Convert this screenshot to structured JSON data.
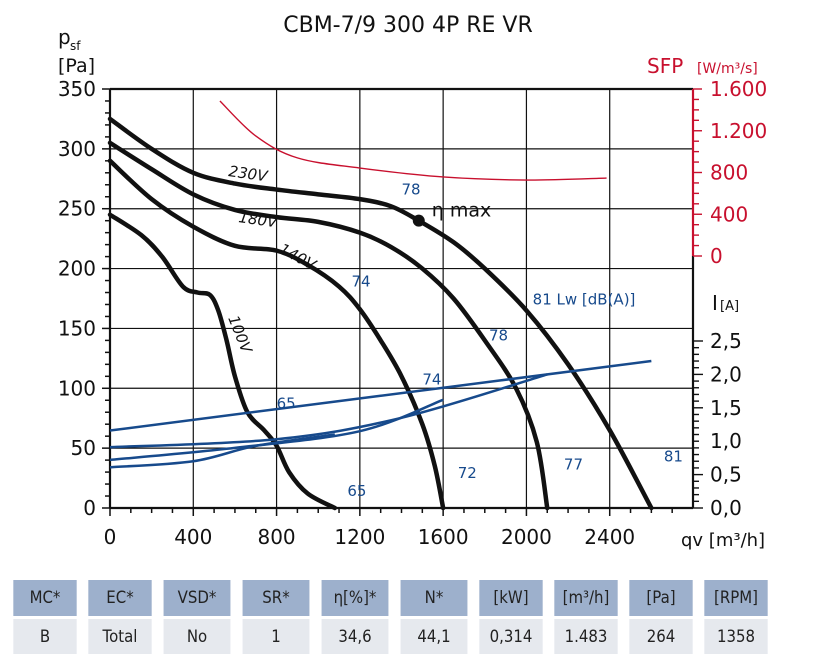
{
  "chart_data": {
    "type": "line",
    "title": "CBM-7/9 300 4P RE VR",
    "xlabel": "qv [m³/h]",
    "ylabel": "psf [Pa]",
    "xlim": [
      0,
      2800
    ],
    "ylim": [
      0,
      350
    ],
    "x_ticks": [
      0,
      400,
      800,
      1200,
      1600,
      2000,
      2400
    ],
    "y_ticks": [
      0,
      50,
      100,
      150,
      200,
      250,
      300,
      350
    ],
    "grid": true,
    "sfp_axis": {
      "label": "SFP",
      "unit": "[W/m³/s]",
      "ticks": [
        "0",
        "400",
        "800",
        "1.200",
        "1.600"
      ],
      "range": [
        0,
        1600
      ],
      "color": "#c8102e"
    },
    "current_axis": {
      "label": "I",
      "unit": "[A]",
      "ticks": [
        "0,0",
        "0,5",
        "1,0",
        "1,5",
        "2,0",
        "2,5"
      ],
      "range": [
        0,
        2.5
      ]
    },
    "fan_curves": [
      {
        "name": "230V",
        "points": [
          [
            0,
            325
          ],
          [
            200,
            300
          ],
          [
            400,
            280
          ],
          [
            600,
            271
          ],
          [
            800,
            266
          ],
          [
            1000,
            262
          ],
          [
            1200,
            258
          ],
          [
            1350,
            252
          ],
          [
            1483,
            240
          ],
          [
            1650,
            222
          ],
          [
            1800,
            200
          ],
          [
            2000,
            165
          ],
          [
            2200,
            120
          ],
          [
            2400,
            65
          ],
          [
            2600,
            0
          ]
        ]
      },
      {
        "name": "180V",
        "points": [
          [
            0,
            305
          ],
          [
            200,
            283
          ],
          [
            400,
            262
          ],
          [
            600,
            249
          ],
          [
            800,
            243
          ],
          [
            1000,
            239
          ],
          [
            1200,
            230
          ],
          [
            1350,
            218
          ],
          [
            1500,
            200
          ],
          [
            1650,
            175
          ],
          [
            1800,
            140
          ],
          [
            1950,
            100
          ],
          [
            2050,
            55
          ],
          [
            2100,
            0
          ]
        ]
      },
      {
        "name": "140V",
        "points": [
          [
            0,
            290
          ],
          [
            200,
            258
          ],
          [
            400,
            235
          ],
          [
            600,
            219
          ],
          [
            800,
            215
          ],
          [
            950,
            203
          ],
          [
            1100,
            185
          ],
          [
            1200,
            166
          ],
          [
            1300,
            140
          ],
          [
            1400,
            110
          ],
          [
            1500,
            70
          ],
          [
            1560,
            35
          ],
          [
            1600,
            0
          ]
        ]
      },
      {
        "name": "100V",
        "points": [
          [
            0,
            245
          ],
          [
            150,
            228
          ],
          [
            250,
            210
          ],
          [
            350,
            185
          ],
          [
            420,
            180
          ],
          [
            480,
            178
          ],
          [
            520,
            165
          ],
          [
            560,
            140
          ],
          [
            600,
            110
          ],
          [
            660,
            80
          ],
          [
            740,
            65
          ],
          [
            800,
            52
          ],
          [
            860,
            30
          ],
          [
            950,
            12
          ],
          [
            1080,
            0
          ]
        ]
      }
    ],
    "sfp_curve": {
      "name": "SFP",
      "points": [
        [
          528,
          1485
        ],
        [
          700,
          1150
        ],
        [
          900,
          940
        ],
        [
          1200,
          843
        ],
        [
          1600,
          757
        ],
        [
          2000,
          728
        ],
        [
          2385,
          747
        ]
      ]
    },
    "current_curves": [
      {
        "name": "I-230V",
        "points": [
          [
            0,
            1.16
          ],
          [
            2600,
            2.2
          ]
        ]
      },
      {
        "name": "I-180V",
        "points": [
          [
            0,
            0.91
          ],
          [
            800,
            1.03
          ],
          [
            1400,
            1.35
          ],
          [
            2100,
            2.0
          ]
        ]
      },
      {
        "name": "I-140V",
        "points": [
          [
            0,
            0.72
          ],
          [
            600,
            0.9
          ],
          [
            1200,
            1.15
          ],
          [
            1600,
            1.62
          ]
        ]
      },
      {
        "name": "I-100V",
        "points": [
          [
            0,
            0.61
          ],
          [
            400,
            0.7
          ],
          [
            700,
            0.93
          ],
          [
            1080,
            1.1
          ]
        ]
      }
    ],
    "eta_max": {
      "label": "η max",
      "point": [
        1483,
        240
      ]
    },
    "voltage_labels": [
      "230V",
      "180V",
      "140V",
      "100V"
    ],
    "sound_labels": [
      {
        "text": "78",
        "at": [
          1400,
          262
        ]
      },
      {
        "text": "74",
        "at": [
          1160,
          185
        ]
      },
      {
        "text": "81 Lw [dB(A)]",
        "at": [
          2030,
          170
        ]
      },
      {
        "text": "78",
        "at": [
          1820,
          140
        ]
      },
      {
        "text": "74",
        "at": [
          1500,
          103
        ]
      },
      {
        "text": "65",
        "at": [
          800,
          83
        ]
      },
      {
        "text": "65",
        "at": [
          1140,
          10
        ]
      },
      {
        "text": "72",
        "at": [
          1670,
          25
        ]
      },
      {
        "text": "77",
        "at": [
          2180,
          32
        ]
      },
      {
        "text": "81",
        "at": [
          2660,
          39
        ]
      }
    ]
  },
  "table": {
    "headers": [
      "MC*",
      "EC*",
      "VSD*",
      "SR*",
      "η[%]*",
      "N*",
      "[kW]",
      "[m³/h]",
      "[Pa]",
      "[RPM]"
    ],
    "values": [
      "B",
      "Total",
      "No",
      "1",
      "34,6",
      "44,1",
      "0,314",
      "1.483",
      "264",
      "1358"
    ]
  },
  "colors": {
    "curve": "#111111",
    "sfp": "#c8102e",
    "current": "#174a8c",
    "header_bg": "#9db0cc",
    "row_bg": "#e6e9ee"
  }
}
